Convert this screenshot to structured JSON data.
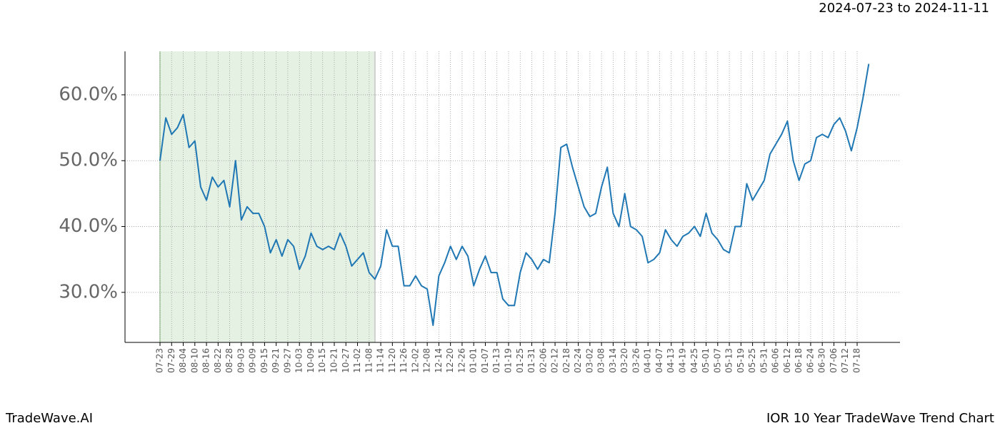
{
  "chart_data": {
    "type": "line",
    "title": "2024-07-23 to 2024-11-11",
    "footer_left": "TradeWave.AI",
    "footer_right": "IOR 10 Year TradeWave Trend Chart",
    "categories": [
      "07-23",
      null,
      "07-29",
      null,
      "08-04",
      null,
      "08-10",
      null,
      "08-16",
      null,
      "08-22",
      null,
      "08-28",
      null,
      "09-03",
      null,
      "09-09",
      null,
      "09-15",
      null,
      "09-21",
      null,
      "09-27",
      null,
      "10-03",
      null,
      "10-09",
      null,
      "10-15",
      null,
      "10-21",
      null,
      "10-27",
      null,
      "11-02",
      null,
      "11-08",
      null,
      "11-14",
      null,
      "11-20",
      null,
      "11-26",
      null,
      "12-02",
      null,
      "12-08",
      null,
      "12-14",
      null,
      "12-20",
      null,
      "12-26",
      null,
      "01-01",
      null,
      "01-07",
      null,
      "01-13",
      null,
      "01-19",
      null,
      "01-25",
      null,
      "01-31",
      null,
      "02-06",
      null,
      "02-12",
      null,
      "02-18",
      null,
      "02-24",
      null,
      "03-02",
      null,
      "03-08",
      null,
      "03-14",
      null,
      "03-20",
      null,
      "03-26",
      null,
      "04-01",
      null,
      "04-07",
      null,
      "04-13",
      null,
      "04-19",
      null,
      "04-25",
      null,
      "05-01",
      null,
      "05-07",
      null,
      "05-13",
      null,
      "05-19",
      null,
      "05-25",
      null,
      "05-31",
      null,
      "06-06",
      null,
      "06-12",
      null,
      "06-18",
      null,
      "06-24",
      null,
      "06-30",
      null,
      "07-06",
      null,
      "07-12",
      null,
      "07-18",
      null,
      null
    ],
    "series": [
      {
        "color": "#1f77b4",
        "values": [
          50.0,
          56.5,
          54,
          55,
          57,
          52,
          53,
          46,
          44,
          47.5,
          46,
          47,
          43,
          50,
          41,
          43,
          42,
          42,
          40,
          36,
          38,
          35.5,
          38,
          37,
          33.5,
          35.5,
          39,
          37,
          36.5,
          37,
          36.5,
          39,
          37,
          34,
          35,
          36,
          33,
          32,
          34,
          39.5,
          37,
          37,
          31,
          31,
          32.5,
          31,
          30.5,
          25,
          32.5,
          34.5,
          37,
          35,
          37,
          35.5,
          31,
          33.5,
          35.5,
          33,
          33,
          29,
          28,
          28,
          33,
          36,
          35,
          33.5,
          35,
          34.5,
          42,
          52,
          52.5,
          49,
          46,
          43,
          41.5,
          42,
          46,
          49,
          42,
          40,
          45,
          40,
          39.5,
          38.5,
          34.5,
          35,
          36,
          39.5,
          38,
          37,
          38.5,
          39,
          40,
          38.5,
          42,
          39,
          38,
          36.5,
          36,
          40,
          40,
          46.5,
          44,
          45.5,
          47,
          51,
          52.5,
          54,
          56,
          50,
          47,
          49.5,
          50,
          53.5,
          54,
          53.5,
          55.5,
          56.5,
          54.5,
          51.5,
          55,
          59.5,
          64.7
        ]
      }
    ],
    "ylim": [
      22.4,
      66.6
    ],
    "yticks": [
      {
        "value": 30,
        "label": "30.0%"
      },
      {
        "value": 40,
        "label": "40.0%"
      },
      {
        "value": 50,
        "label": "50.0%"
      },
      {
        "value": 60,
        "label": "60.0%"
      }
    ],
    "grid": true
  }
}
